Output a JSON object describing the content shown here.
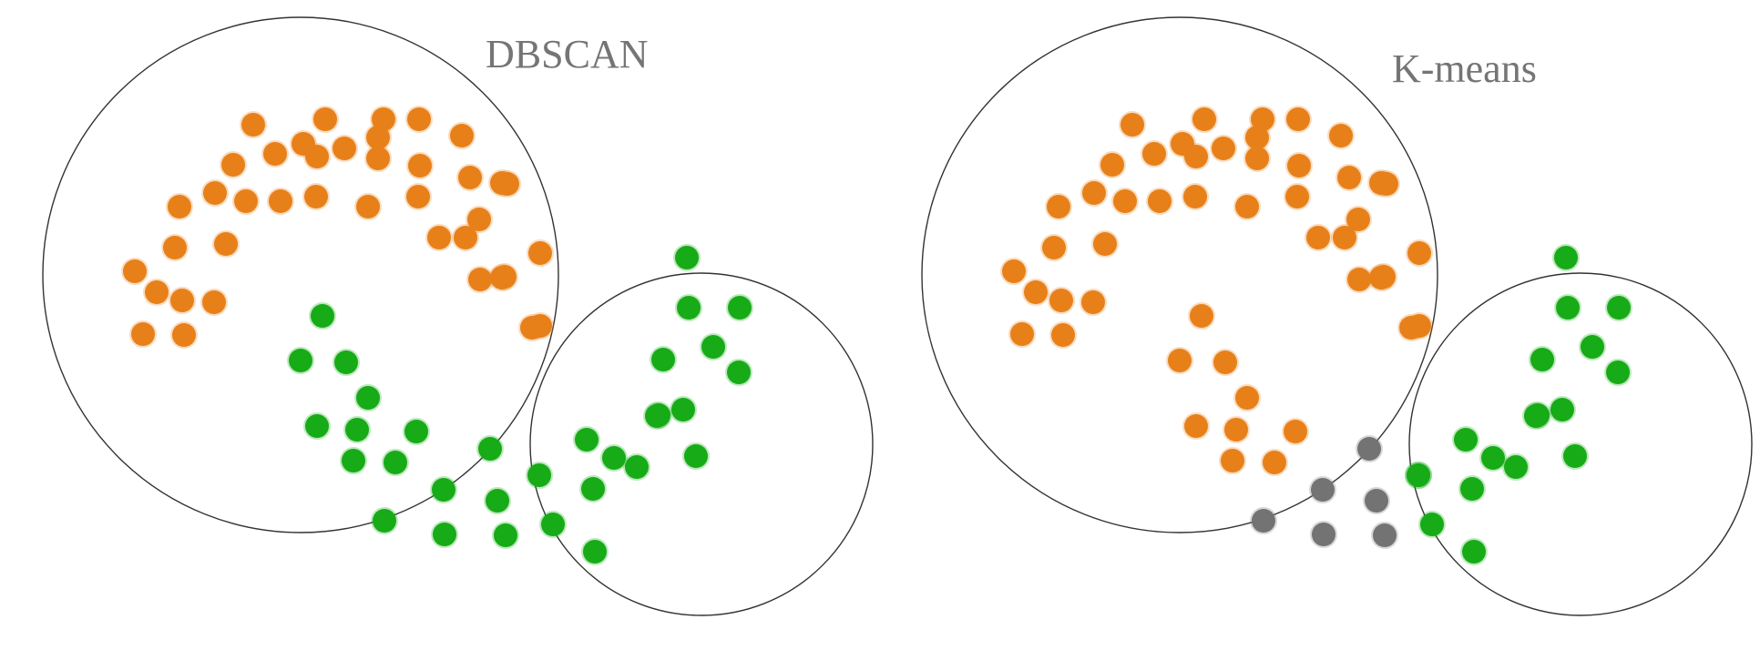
{
  "colors": {
    "orange": "#e8801a",
    "green": "#17ab17",
    "gray": "#737373",
    "title": "#757575",
    "circle": "#333333"
  },
  "panels": [
    {
      "title": "DBSCAN",
      "points": {
        "orange": 40,
        "green": 36,
        "gray": 0
      }
    },
    {
      "title": "K-means",
      "points": {
        "orange": 48,
        "green": 22,
        "gray": 6
      }
    }
  ]
}
